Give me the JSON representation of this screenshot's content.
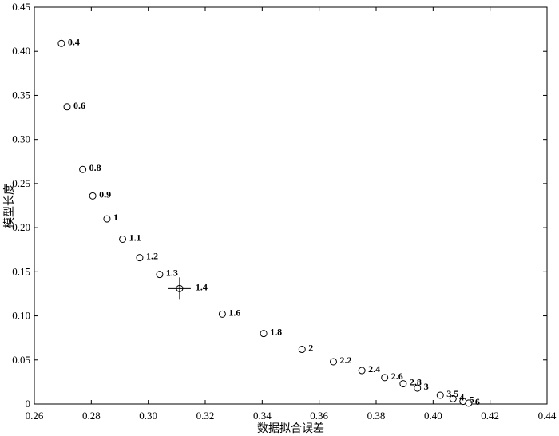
{
  "chart_data": {
    "type": "scatter",
    "title": "",
    "xlabel": "数据拟合误差",
    "ylabel": "模型长度",
    "xlim": [
      0.26,
      0.44
    ],
    "ylim": [
      0,
      0.45
    ],
    "grid": false,
    "x_ticks": [
      "0.26",
      "0.28",
      "0.30",
      "0.32",
      "0.34",
      "0.36",
      "0.38",
      "0.40",
      "0.42",
      "0.44"
    ],
    "y_ticks": [
      "0",
      "0.05",
      "0.10",
      "0.15",
      "0.20",
      "0.25",
      "0.30",
      "0.35",
      "0.40",
      "0.45"
    ],
    "series": [
      {
        "marker": "circle",
        "points": [
          {
            "x": 0.2695,
            "y": 0.409,
            "label": "0.4"
          },
          {
            "x": 0.2715,
            "y": 0.337,
            "label": "0.6"
          },
          {
            "x": 0.277,
            "y": 0.266,
            "label": "0.8"
          },
          {
            "x": 0.2805,
            "y": 0.236,
            "label": "0.9"
          },
          {
            "x": 0.2855,
            "y": 0.21,
            "label": "1"
          },
          {
            "x": 0.291,
            "y": 0.187,
            "label": "1.1"
          },
          {
            "x": 0.297,
            "y": 0.166,
            "label": "1.2"
          },
          {
            "x": 0.304,
            "y": 0.147,
            "label": "1.3"
          },
          {
            "x": 0.311,
            "y": 0.131,
            "label": "1.4",
            "highlight": true
          },
          {
            "x": 0.326,
            "y": 0.102,
            "label": "1.6"
          },
          {
            "x": 0.3405,
            "y": 0.08,
            "label": "1.8"
          },
          {
            "x": 0.354,
            "y": 0.062,
            "label": "2"
          },
          {
            "x": 0.365,
            "y": 0.048,
            "label": "2.2"
          },
          {
            "x": 0.375,
            "y": 0.038,
            "label": "2.4"
          },
          {
            "x": 0.383,
            "y": 0.03,
            "label": "2.6"
          },
          {
            "x": 0.3895,
            "y": 0.023,
            "label": "2.8"
          },
          {
            "x": 0.3945,
            "y": 0.018,
            "label": "3"
          },
          {
            "x": 0.4025,
            "y": 0.01,
            "label": "3.5"
          },
          {
            "x": 0.407,
            "y": 0.006,
            "label": "4"
          },
          {
            "x": 0.4105,
            "y": 0.003,
            "label": "5"
          },
          {
            "x": 0.4125,
            "y": 0.001,
            "label": "6"
          }
        ]
      }
    ]
  }
}
